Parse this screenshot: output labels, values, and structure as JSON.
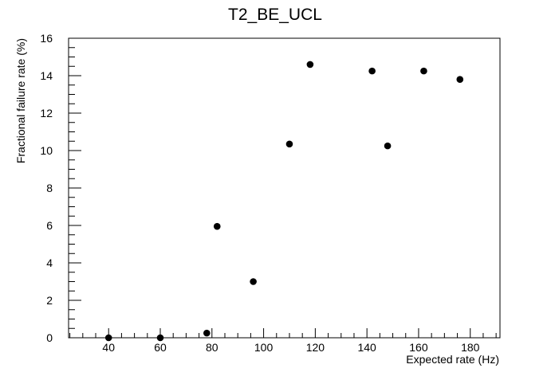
{
  "chart_data": {
    "type": "scatter",
    "title": "T2_BE_UCL",
    "xlabel": "Expected rate (Hz)",
    "ylabel": "Fractional failure rate (%)",
    "xlim": [
      24.5,
      191.5
    ],
    "ylim": [
      0,
      16
    ],
    "xticks": [
      40,
      60,
      80,
      100,
      120,
      140,
      160,
      180
    ],
    "yticks": [
      0,
      2,
      4,
      6,
      8,
      10,
      12,
      14,
      16
    ],
    "grid": false,
    "legend": "none",
    "marker_color": "#000000",
    "points": [
      {
        "x": 40,
        "y": 0
      },
      {
        "x": 60,
        "y": 0
      },
      {
        "x": 78,
        "y": 0.25
      },
      {
        "x": 82,
        "y": 5.95
      },
      {
        "x": 96,
        "y": 3.0
      },
      {
        "x": 110,
        "y": 10.35
      },
      {
        "x": 118,
        "y": 14.6
      },
      {
        "x": 142,
        "y": 14.25
      },
      {
        "x": 148,
        "y": 10.25
      },
      {
        "x": 162,
        "y": 14.25
      },
      {
        "x": 176,
        "y": 13.8
      }
    ]
  }
}
